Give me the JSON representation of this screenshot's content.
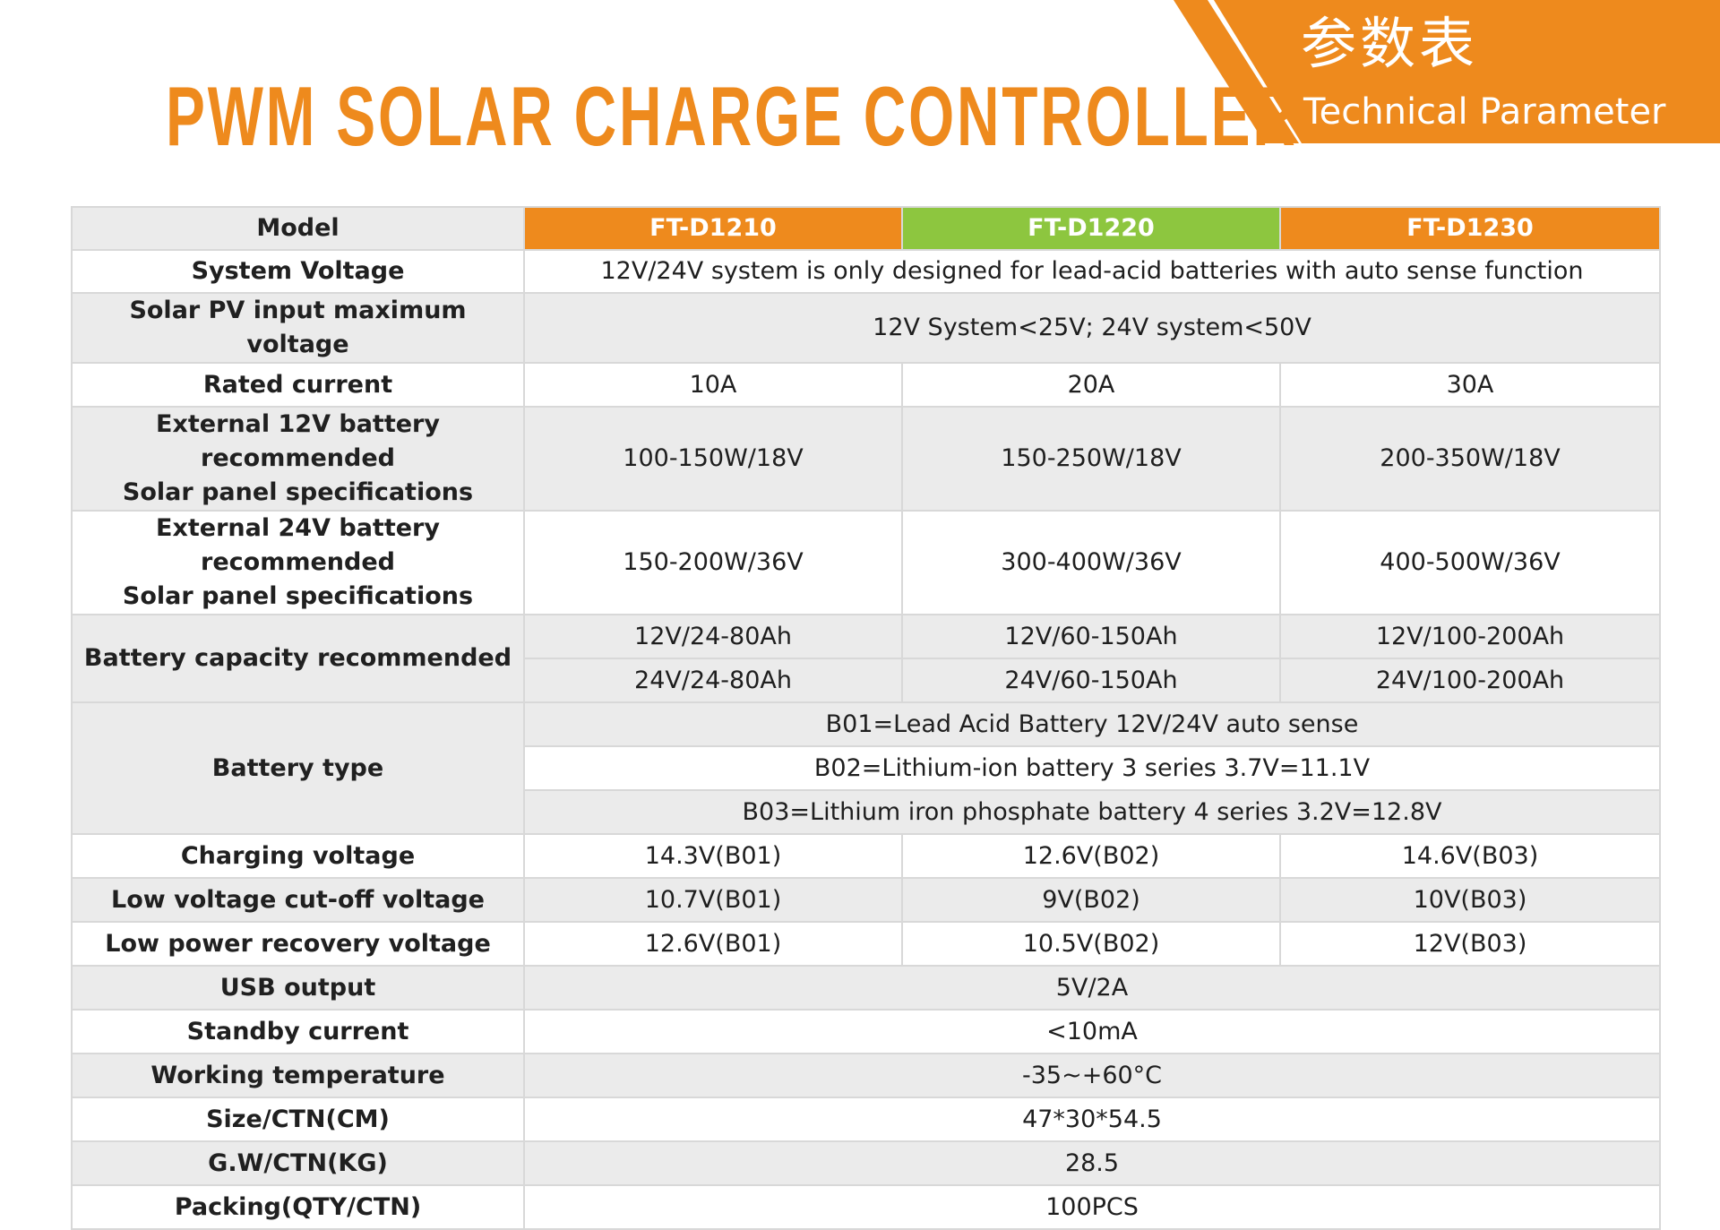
{
  "title": "PWM SOLAR CHARGE CONTROLLER",
  "banner": {
    "cn": "参数表",
    "en": "Technical Parameter"
  },
  "colors": {
    "accent": "#ee8a1d",
    "green": "#8dc63f",
    "row_gray": "#ebebeb",
    "border": "#d8d8d8"
  },
  "table": {
    "model_label": "Model",
    "models": [
      "FT-D1210",
      "FT-D1220",
      "FT-D1230"
    ],
    "system_voltage": {
      "label": "System Voltage",
      "value": "12V/24V system is only designed for lead-acid batteries with auto sense function"
    },
    "pv_input": {
      "label": "Solar PV input maximum voltage",
      "value": "12V System<25V; 24V system<50V"
    },
    "rated_current": {
      "label": "Rated current",
      "values": [
        "10A",
        "20A",
        "30A"
      ]
    },
    "ext12": {
      "label_1": "External 12V battery recommended",
      "label_2": "Solar panel specifications",
      "values": [
        "100-150W/18V",
        "150-250W/18V",
        "200-350W/18V"
      ]
    },
    "ext24": {
      "label_1": "External 24V battery recommended",
      "label_2": "Solar panel specifications",
      "values": [
        "150-200W/36V",
        "300-400W/36V",
        "400-500W/36V"
      ]
    },
    "battery_capacity": {
      "label": "Battery capacity recommended",
      "row_12v": [
        "12V/24-80Ah",
        "12V/60-150Ah",
        "12V/100-200Ah"
      ],
      "row_24v": [
        "24V/24-80Ah",
        "24V/60-150Ah",
        "24V/100-200Ah"
      ]
    },
    "battery_type": {
      "label": "Battery type",
      "b01": "B01=Lead Acid Battery 12V/24V auto sense",
      "b02": "B02=Lithium-ion battery 3 series 3.7V=11.1V",
      "b03": "B03=Lithium iron phosphate battery 4 series 3.2V=12.8V"
    },
    "charging_voltage": {
      "label": "Charging voltage",
      "values": [
        "14.3V(B01)",
        "12.6V(B02)",
        "14.6V(B03)"
      ]
    },
    "low_cutoff": {
      "label": "Low voltage cut-off voltage",
      "values": [
        "10.7V(B01)",
        "9V(B02)",
        "10V(B03)"
      ]
    },
    "low_recovery": {
      "label": "Low power recovery voltage",
      "values": [
        "12.6V(B01)",
        "10.5V(B02)",
        "12V(B03)"
      ]
    },
    "usb_output": {
      "label": "USB output",
      "value": "5V/2A"
    },
    "standby_current": {
      "label": "Standby current",
      "value": "<10mA"
    },
    "working_temp": {
      "label": "Working temperature",
      "value": "-35~+60°C"
    },
    "size_ctn": {
      "label": "Size/CTN(CM)",
      "value": "47*30*54.5"
    },
    "gw_ctn": {
      "label": "G.W/CTN(KG)",
      "value": "28.5"
    },
    "packing": {
      "label": "Packing(QTY/CTN)",
      "value": "100PCS"
    }
  }
}
